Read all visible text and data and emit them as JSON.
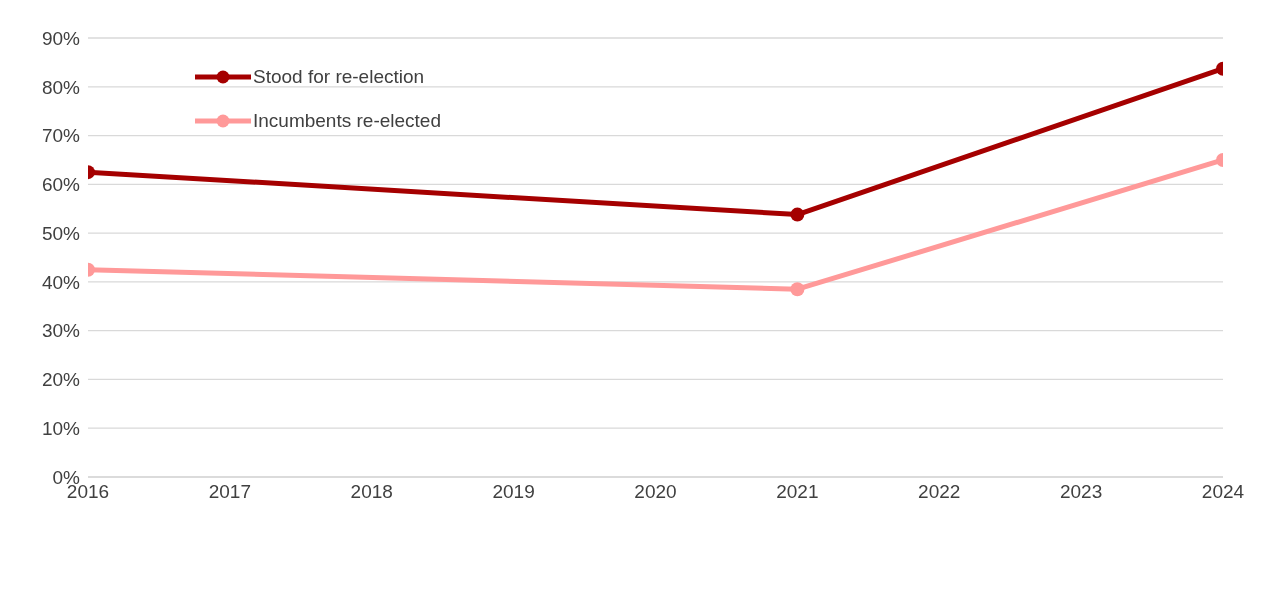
{
  "chart_data": {
    "type": "line",
    "x": [
      2016,
      2021,
      2024
    ],
    "series": [
      {
        "name": "Stood for re-election",
        "color": "#a50000",
        "values": [
          62.5,
          53.8,
          83.7
        ]
      },
      {
        "name": "Incumbents re-elected",
        "color": "#ff9999",
        "values": [
          42.5,
          38.5,
          65
        ]
      }
    ],
    "xlim": [
      2016,
      2024
    ],
    "xticks": [
      2016,
      2017,
      2018,
      2019,
      2020,
      2021,
      2022,
      2023,
      2024
    ],
    "ylim": [
      0,
      90
    ],
    "yticks": [
      {
        "value": 0,
        "label": "0%"
      },
      {
        "value": 10,
        "label": "10%"
      },
      {
        "value": 20,
        "label": "20%"
      },
      {
        "value": 30,
        "label": "30%"
      },
      {
        "value": 40,
        "label": "40%"
      },
      {
        "value": 50,
        "label": "50%"
      },
      {
        "value": 60,
        "label": "60%"
      },
      {
        "value": 70,
        "label": "70%"
      },
      {
        "value": 80,
        "label": "80%"
      },
      {
        "value": 90,
        "label": "90%"
      }
    ],
    "grid": "y",
    "legend": "top left",
    "marker": "circle",
    "line_style": "solid"
  }
}
